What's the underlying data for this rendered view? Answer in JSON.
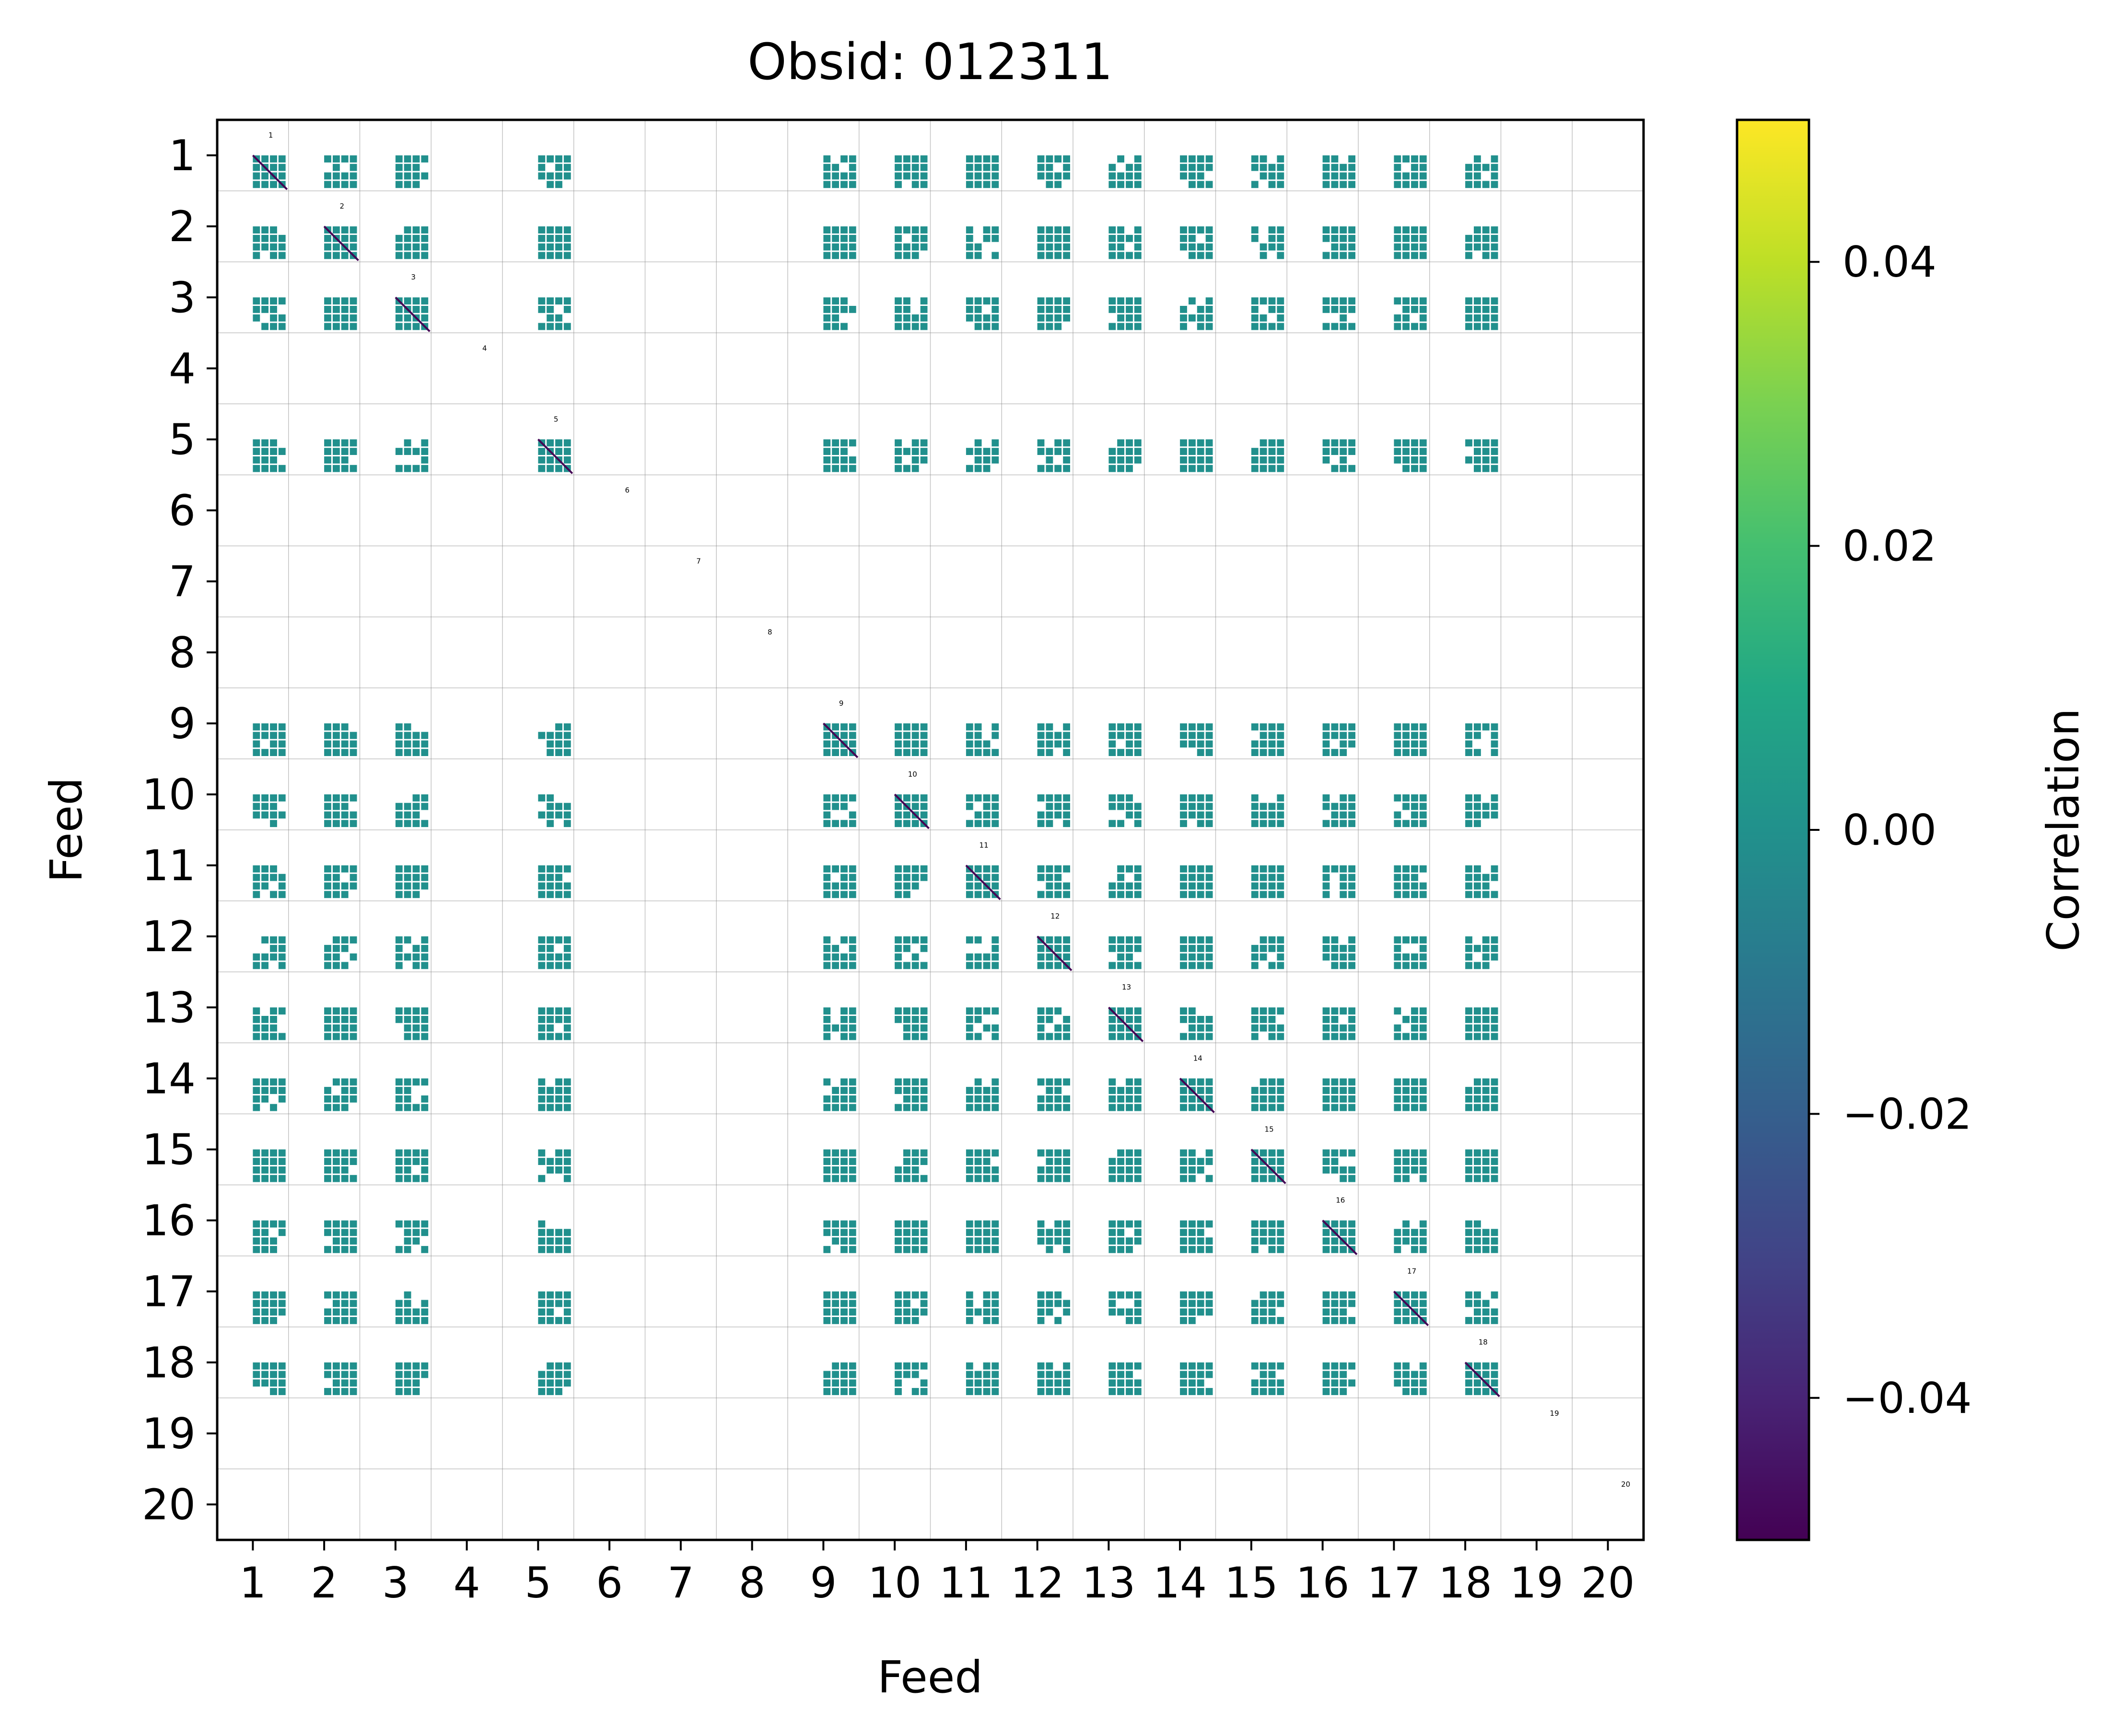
{
  "chart_data": {
    "type": "heatmap",
    "title": "Obsid: 012311",
    "xlabel": "Feed",
    "ylabel": "Feed",
    "feeds": [
      "1",
      "2",
      "3",
      "4",
      "5",
      "6",
      "7",
      "8",
      "9",
      "10",
      "11",
      "12",
      "13",
      "14",
      "15",
      "16",
      "17",
      "18",
      "19",
      "20"
    ],
    "grid": true,
    "colormap": "viridis",
    "colorbar": {
      "label": "Correlation",
      "range": [
        -0.05,
        0.05
      ],
      "ticks": [
        -0.04,
        -0.02,
        0.0,
        0.02,
        0.04
      ],
      "tick_labels": [
        "−0.04",
        "−0.02",
        "0.00",
        "0.02",
        "0.04"
      ]
    },
    "valid_feeds": [
      "1",
      "2",
      "3",
      "5",
      "9",
      "10",
      "11",
      "12",
      "13",
      "14",
      "15",
      "16",
      "17",
      "18"
    ],
    "missing_feeds": [
      "4",
      "6",
      "7",
      "8",
      "19",
      "20"
    ],
    "fill_color": "#21908d",
    "diagonal_value": -0.05,
    "diagonal_color": "#440154",
    "off_diagonal_value": 0.0
  }
}
